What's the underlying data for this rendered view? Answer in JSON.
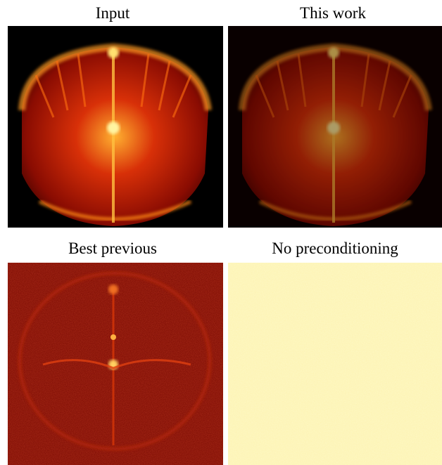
{
  "panels": [
    {
      "title": "Input"
    },
    {
      "title": "This work"
    },
    {
      "title": "Best previous"
    },
    {
      "title": "No preconditioning"
    }
  ]
}
